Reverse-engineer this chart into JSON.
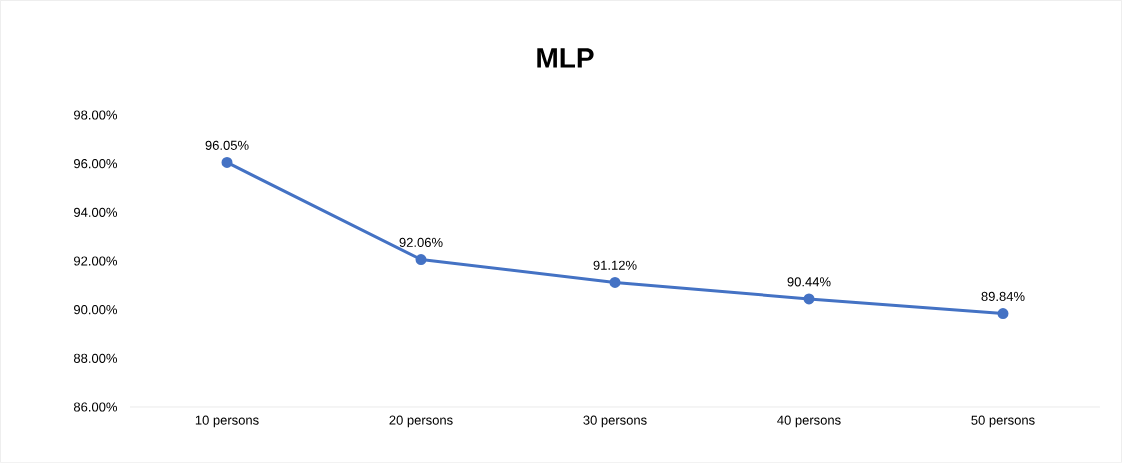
{
  "chart_data": {
    "type": "line",
    "title": "MLP",
    "categories": [
      "10 persons",
      "20 persons",
      "30 persons",
      "40 persons",
      "50 persons"
    ],
    "values": [
      96.05,
      92.06,
      91.12,
      90.44,
      89.84
    ],
    "value_labels": [
      "96.05%",
      "92.06%",
      "91.12%",
      "90.44%",
      "89.84%"
    ],
    "color": "#4472c4",
    "marker": "circle",
    "line_style": "solid",
    "grid": false,
    "ylim": [
      86,
      98
    ],
    "yticks": [
      {
        "value": 86,
        "label": "86.00%"
      },
      {
        "value": 88,
        "label": "88.00%"
      },
      {
        "value": 90,
        "label": "90.00%"
      },
      {
        "value": 92,
        "label": "92.00%"
      },
      {
        "value": 94,
        "label": "94.00%"
      },
      {
        "value": 96,
        "label": "96.00%"
      },
      {
        "value": 98,
        "label": "98.00%"
      }
    ]
  }
}
